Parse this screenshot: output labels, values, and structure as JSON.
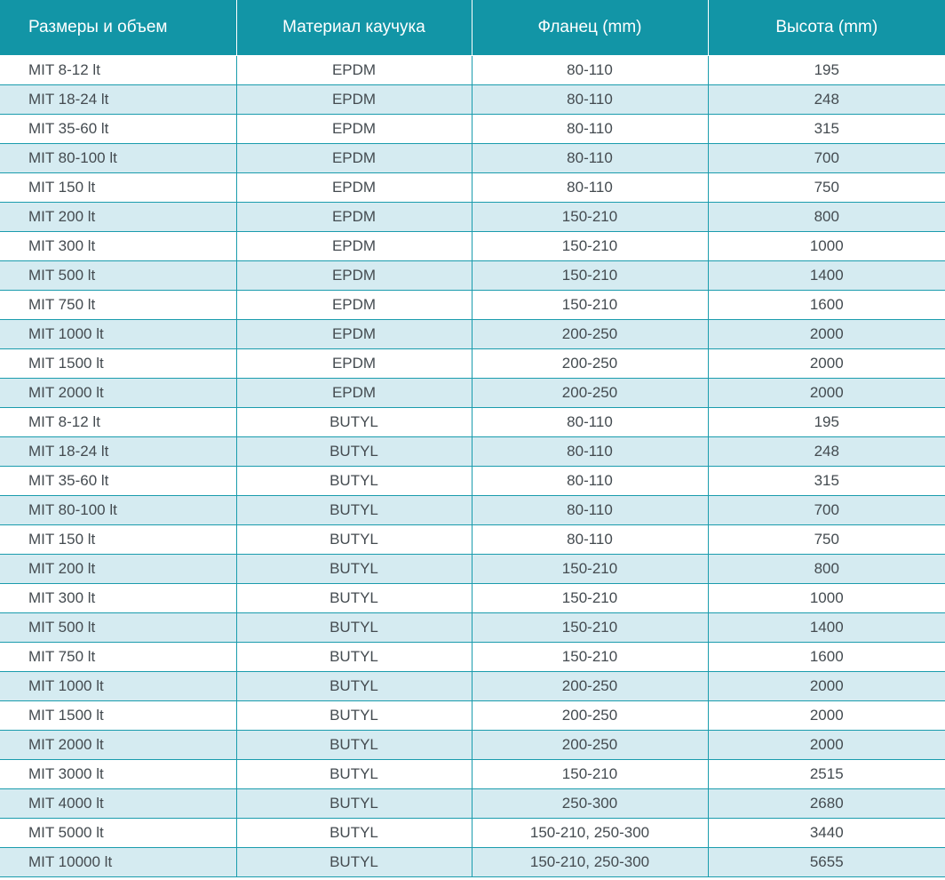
{
  "colors": {
    "header_bg": "#1295a6",
    "row_alt_bg": "#d5ebf1",
    "grid_line": "#1a9cad",
    "text": "#444b50"
  },
  "table": {
    "headers": [
      "Размеры и объем",
      "Материал каучука",
      "Фланец (mm)",
      "Высота (mm)"
    ],
    "rows": [
      [
        "MIT 8-12 lt",
        "EPDM",
        "80-110",
        "195"
      ],
      [
        "MIT 18-24 lt",
        "EPDM",
        "80-110",
        "248"
      ],
      [
        "MIT 35-60 lt",
        "EPDM",
        "80-110",
        "315"
      ],
      [
        "MIT 80-100 lt",
        "EPDM",
        "80-110",
        "700"
      ],
      [
        "MIT 150 lt",
        "EPDM",
        "80-110",
        "750"
      ],
      [
        "MIT 200 lt",
        "EPDM",
        "150-210",
        "800"
      ],
      [
        "MIT 300 lt",
        "EPDM",
        "150-210",
        "1000"
      ],
      [
        "MIT 500 lt",
        "EPDM",
        "150-210",
        "1400"
      ],
      [
        "MIT 750 lt",
        "EPDM",
        "150-210",
        "1600"
      ],
      [
        "MIT 1000 lt",
        "EPDM",
        "200-250",
        "2000"
      ],
      [
        "MIT 1500 lt",
        "EPDM",
        "200-250",
        "2000"
      ],
      [
        "MIT 2000 lt",
        "EPDM",
        "200-250",
        "2000"
      ],
      [
        "MIT 8-12 lt",
        "BUTYL",
        "80-110",
        "195"
      ],
      [
        "MIT 18-24 lt",
        "BUTYL",
        "80-110",
        "248"
      ],
      [
        "MIT 35-60 lt",
        "BUTYL",
        "80-110",
        "315"
      ],
      [
        "MIT 80-100 lt",
        "BUTYL",
        "80-110",
        "700"
      ],
      [
        "MIT 150 lt",
        "BUTYL",
        "80-110",
        "750"
      ],
      [
        "MIT 200 lt",
        "BUTYL",
        "150-210",
        "800"
      ],
      [
        "MIT 300 lt",
        "BUTYL",
        "150-210",
        "1000"
      ],
      [
        "MIT 500 lt",
        "BUTYL",
        "150-210",
        "1400"
      ],
      [
        "MIT 750 lt",
        "BUTYL",
        "150-210",
        "1600"
      ],
      [
        "MIT 1000 lt",
        "BUTYL",
        "200-250",
        "2000"
      ],
      [
        "MIT 1500 lt",
        "BUTYL",
        "200-250",
        "2000"
      ],
      [
        "MIT 2000 lt",
        "BUTYL",
        "200-250",
        "2000"
      ],
      [
        "MIT 3000 lt",
        "BUTYL",
        "150-210",
        "2515"
      ],
      [
        "MIT 4000 lt",
        "BUTYL",
        "250-300",
        "2680"
      ],
      [
        "MIT 5000 lt",
        "BUTYL",
        "150-210, 250-300",
        "3440"
      ],
      [
        "MIT 10000 lt",
        "BUTYL",
        "150-210, 250-300",
        "5655"
      ]
    ]
  }
}
